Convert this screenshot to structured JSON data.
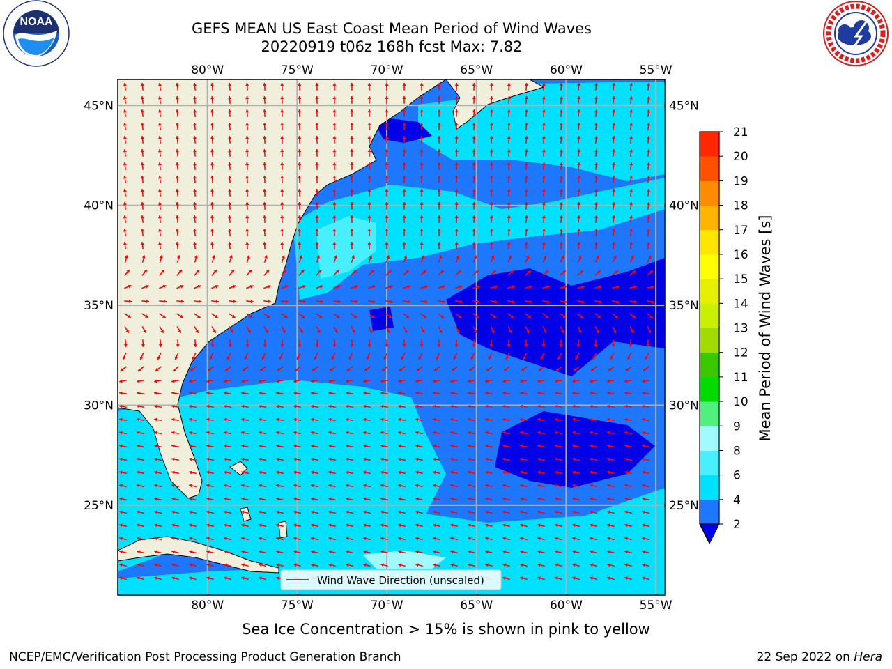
{
  "header": {
    "title_line1": "GEFS MEAN US East Coast Mean Period of Wind Waves",
    "title_line2": "20220919 t06z 168h fcst   Max: 7.82"
  },
  "logos": {
    "left": {
      "name": "noaa-logo",
      "text": "NOAA",
      "ring_text": "NATIONAL OCEANIC AND ATMOSPHERIC ADMINISTRATION · U.S. DEPARTMENT OF COMMERCE"
    },
    "right": {
      "name": "nws-logo",
      "ring_text": "NATIONAL WEATHER SERVICE"
    }
  },
  "map": {
    "lon_labels": [
      "80°W",
      "75°W",
      "70°W",
      "65°W",
      "60°W",
      "55°W"
    ],
    "lat_labels": [
      "45°N",
      "40°N",
      "35°N",
      "30°N",
      "25°N"
    ],
    "extent": {
      "lon": [
        -85,
        -54.5
      ],
      "lat": [
        20.5,
        46.3
      ]
    },
    "legend_label": "Wind Wave Direction (unscaled)",
    "arrow_color": "#ff0000",
    "land_color": "#efefdb",
    "gridline_color": "#b0b0b0"
  },
  "colorbar": {
    "label": "Mean Period of Wind Waves [s]",
    "ticks": [
      "2",
      "4",
      "6",
      "8",
      "9",
      "10",
      "11",
      "12",
      "13",
      "14",
      "15",
      "16",
      "17",
      "18",
      "19",
      "20",
      "21"
    ],
    "colors": [
      "#1e78ff",
      "#00e1ff",
      "#48f0ff",
      "#a0faff",
      "#50f080",
      "#00dc00",
      "#3cc800",
      "#a0dc00",
      "#c8f000",
      "#e6f000",
      "#ffff00",
      "#ffe600",
      "#ffb400",
      "#ff8c00",
      "#ff5000",
      "#ff2800"
    ],
    "under_color": "#0000e6"
  },
  "footer": {
    "note": "Sea Ice Concentration > 15% is shown in pink to yellow",
    "credit": "NCEP/EMC/Verification Post Processing Product Generation Branch",
    "date": "22 Sep 2022 on",
    "host": "Hera"
  }
}
